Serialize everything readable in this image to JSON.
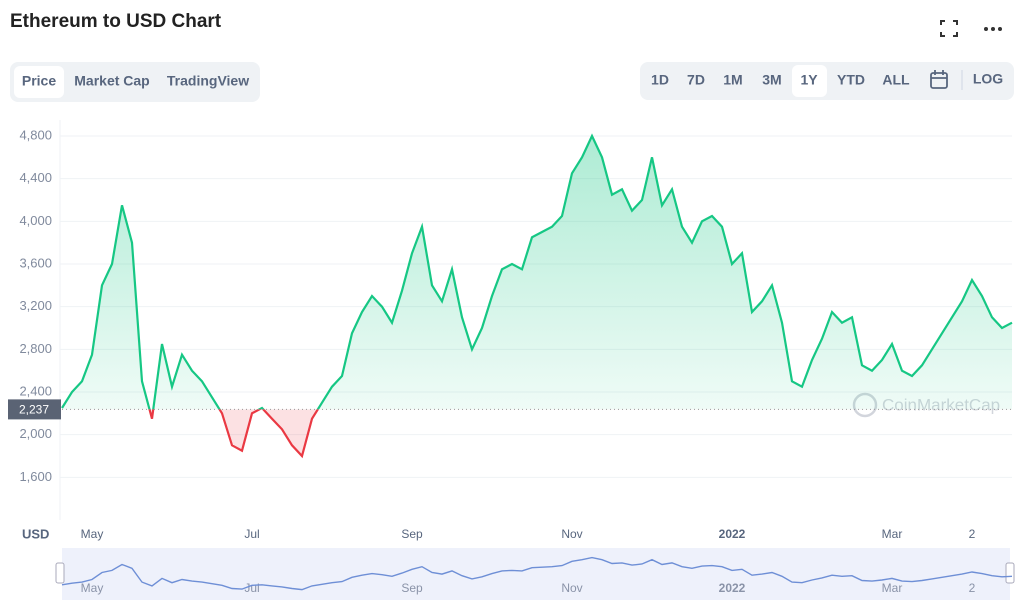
{
  "header": {
    "title": "Ethereum to USD Chart",
    "tabs": [
      "Price",
      "Market Cap",
      "TradingView"
    ],
    "ranges": [
      "1D",
      "7D",
      "1M",
      "3M",
      "1Y",
      "YTD",
      "ALL"
    ],
    "log": "LOG"
  },
  "chart_data": {
    "type": "line",
    "currency": "USD",
    "watermark": "CoinMarketCap",
    "categories": [
      null,
      null,
      null,
      "May",
      null,
      null,
      null,
      null,
      null,
      null,
      null,
      null,
      null,
      null,
      null,
      null,
      null,
      null,
      null,
      "Jul",
      null,
      null,
      null,
      null,
      null,
      null,
      null,
      null,
      null,
      null,
      null,
      null,
      null,
      null,
      null,
      "Sep",
      null,
      null,
      null,
      null,
      null,
      null,
      null,
      null,
      null,
      null,
      null,
      null,
      null,
      null,
      null,
      "Nov",
      null,
      null,
      null,
      null,
      null,
      null,
      null,
      null,
      null,
      null,
      null,
      null,
      null,
      null,
      null,
      "2022",
      null,
      null,
      null,
      null,
      null,
      null,
      null,
      null,
      null,
      null,
      null,
      null,
      null,
      null,
      null,
      "Mar",
      null,
      null,
      null,
      null,
      null,
      null,
      null,
      "2",
      null,
      null,
      null,
      null
    ],
    "values": [
      2250,
      2400,
      2500,
      2750,
      3400,
      3600,
      4150,
      3800,
      2500,
      2150,
      2850,
      2450,
      2750,
      2600,
      2500,
      2350,
      2200,
      1900,
      1850,
      2200,
      2250,
      2150,
      2050,
      1900,
      1800,
      2150,
      2300,
      2450,
      2550,
      2950,
      3150,
      3300,
      3200,
      3050,
      3350,
      3700,
      3950,
      3400,
      3250,
      3550,
      3100,
      2800,
      3000,
      3300,
      3550,
      3600,
      3550,
      3850,
      3900,
      3950,
      4050,
      4450,
      4600,
      4800,
      4600,
      4250,
      4300,
      4100,
      4200,
      4600,
      4150,
      4300,
      3950,
      3800,
      4000,
      4050,
      3950,
      3600,
      3700,
      3150,
      3250,
      3400,
      3050,
      2500,
      2450,
      2700,
      2900,
      3150,
      3050,
      3100,
      2650,
      2600,
      2700,
      2850,
      2600,
      2550,
      2650,
      2800,
      2950,
      3100,
      3250,
      3450,
      3300,
      3100,
      3000,
      3050
    ],
    "baseline": {
      "value": 2237,
      "label": "2,237"
    },
    "up_color": "#16c784",
    "down_color": "#ea3943",
    "navigator_color": "#6e8fd6",
    "ylim": [
      1200,
      4950
    ],
    "yticks": [
      {
        "value": 1600,
        "label": "1,600"
      },
      {
        "value": 2000,
        "label": "2,000"
      },
      {
        "value": 2400,
        "label": "2,400"
      },
      {
        "value": 2800,
        "label": "2,800"
      },
      {
        "value": 3200,
        "label": "3,200"
      },
      {
        "value": 3600,
        "label": "3,600"
      },
      {
        "value": 4000,
        "label": "4,000"
      },
      {
        "value": 4400,
        "label": "4,400"
      },
      {
        "value": 4800,
        "label": "4,800"
      }
    ],
    "grid": true
  }
}
